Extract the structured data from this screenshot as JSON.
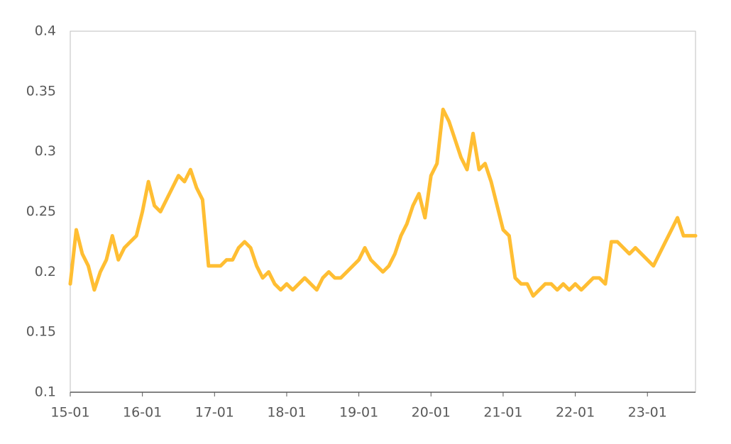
{
  "chart_data": {
    "type": "line",
    "categories": [
      "15-01",
      null,
      null,
      null,
      null,
      null,
      null,
      null,
      null,
      null,
      null,
      null,
      "16-01",
      null,
      null,
      null,
      null,
      null,
      null,
      null,
      null,
      null,
      null,
      null,
      "17-01",
      null,
      null,
      null,
      null,
      null,
      null,
      null,
      null,
      null,
      null,
      null,
      "18-01",
      null,
      null,
      null,
      null,
      null,
      null,
      null,
      null,
      null,
      null,
      null,
      "19-01",
      null,
      null,
      null,
      null,
      null,
      null,
      null,
      null,
      null,
      null,
      null,
      "20-01",
      null,
      null,
      null,
      null,
      null,
      null,
      null,
      null,
      null,
      null,
      null,
      "21-01",
      null,
      null,
      null,
      null,
      null,
      null,
      null,
      null,
      null,
      null,
      null,
      "22-01",
      null,
      null,
      null,
      null,
      null,
      null,
      null,
      null,
      null,
      null,
      null,
      "23-01",
      null,
      null,
      null,
      null,
      null,
      null,
      null,
      null
    ],
    "series": [
      {
        "color": "#FFBE33",
        "values": [
          0.19,
          0.235,
          0.215,
          0.205,
          0.185,
          0.2,
          0.21,
          0.23,
          0.21,
          0.22,
          0.225,
          0.23,
          0.25,
          0.275,
          0.255,
          0.25,
          0.26,
          0.27,
          0.28,
          0.275,
          0.285,
          0.27,
          0.26,
          0.205,
          0.205,
          0.205,
          0.21,
          0.21,
          0.22,
          0.225,
          0.22,
          0.205,
          0.195,
          0.2,
          0.19,
          0.185,
          0.19,
          0.185,
          0.19,
          0.195,
          0.19,
          0.185,
          0.195,
          0.2,
          0.195,
          0.195,
          0.2,
          0.205,
          0.21,
          0.22,
          0.21,
          0.205,
          0.2,
          0.205,
          0.215,
          0.23,
          0.24,
          0.255,
          0.265,
          0.245,
          0.28,
          0.29,
          0.335,
          0.325,
          0.31,
          0.295,
          0.285,
          0.315,
          0.285,
          0.29,
          0.275,
          0.255,
          0.235,
          0.23,
          0.195,
          0.19,
          0.19,
          0.18,
          0.185,
          0.19,
          0.19,
          0.185,
          0.19,
          0.185,
          0.19,
          0.185,
          0.19,
          0.195,
          0.195,
          0.19,
          0.225,
          0.225,
          0.22,
          0.215,
          0.22,
          0.215,
          0.21,
          0.205,
          0.215,
          0.225,
          0.235,
          0.245,
          0.23,
          0.23,
          0.23
        ]
      }
    ],
    "ylim": [
      0.1,
      0.4
    ],
    "yticks": [
      0.1,
      0.15,
      0.2,
      0.25,
      0.3,
      0.35,
      0.4
    ],
    "grid": false
  }
}
